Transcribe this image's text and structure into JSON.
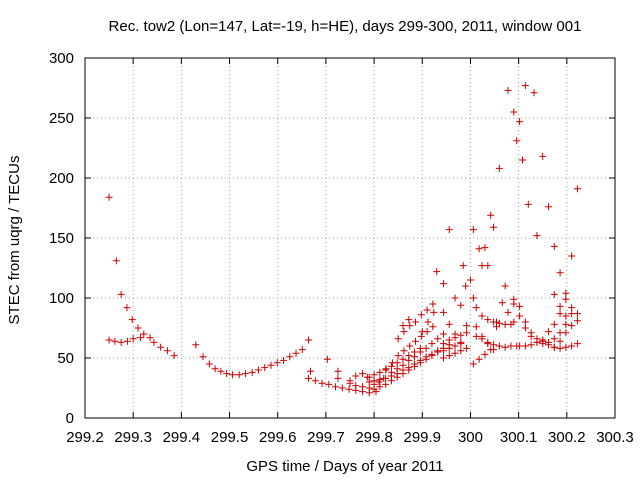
{
  "chart_data": {
    "type": "scatter",
    "title": "Rec. tow2 (Lon=147, Lat=-19, h=HE), days 299-300, 2011, window 001",
    "xlabel": "GPS time / Days of year 2011",
    "ylabel": "STEC from uqrg / TECUs",
    "xlim": [
      299.2,
      300.3
    ],
    "ylim": [
      0,
      300
    ],
    "xticks": [
      299.2,
      299.3,
      299.4,
      299.5,
      299.6,
      299.7,
      299.8,
      299.9,
      300,
      300.1,
      300.2,
      300.3
    ],
    "xtick_labels": [
      "299.2",
      "299.3",
      "299.4",
      "299.5",
      "299.6",
      "299.7",
      "299.8",
      "299.9",
      "300",
      "300.1",
      "300.2",
      "300.3"
    ],
    "yticks": [
      0,
      50,
      100,
      150,
      200,
      250,
      300
    ],
    "ytick_labels": [
      "0",
      "50",
      "100",
      "150",
      "200",
      "250",
      "300"
    ],
    "grid": true,
    "marker": "+",
    "color": "#cc0000",
    "series": [
      {
        "name": "STEC",
        "points": [
          [
            299.25,
            184
          ],
          [
            299.265,
            131
          ],
          [
            299.275,
            103
          ],
          [
            299.287,
            92
          ],
          [
            299.298,
            82
          ],
          [
            299.31,
            75
          ],
          [
            299.322,
            70
          ],
          [
            299.335,
            67
          ],
          [
            299.25,
            65
          ],
          [
            299.262,
            64
          ],
          [
            299.275,
            63
          ],
          [
            299.288,
            64
          ],
          [
            299.3,
            66
          ],
          [
            299.315,
            67
          ],
          [
            299.343,
            63
          ],
          [
            299.357,
            59
          ],
          [
            299.371,
            56
          ],
          [
            299.385,
            52
          ],
          [
            299.43,
            61
          ],
          [
            299.445,
            51
          ],
          [
            299.458,
            45
          ],
          [
            299.47,
            41
          ],
          [
            299.482,
            39
          ],
          [
            299.494,
            37
          ],
          [
            299.506,
            36
          ],
          [
            299.52,
            36
          ],
          [
            299.533,
            37
          ],
          [
            299.547,
            38
          ],
          [
            299.56,
            40
          ],
          [
            299.573,
            42
          ],
          [
            299.586,
            44
          ],
          [
            299.599,
            46
          ],
          [
            299.612,
            48
          ],
          [
            299.625,
            51
          ],
          [
            299.638,
            54
          ],
          [
            299.651,
            57
          ],
          [
            299.664,
            65
          ],
          [
            299.668,
            39
          ],
          [
            299.664,
            33
          ],
          [
            299.678,
            31
          ],
          [
            299.692,
            29
          ],
          [
            299.703,
            49
          ],
          [
            299.706,
            28
          ],
          [
            299.72,
            26
          ],
          [
            299.734,
            25
          ],
          [
            299.748,
            24
          ],
          [
            299.762,
            23
          ],
          [
            299.776,
            22
          ],
          [
            299.79,
            21
          ],
          [
            299.804,
            22
          ],
          [
            299.725,
            33
          ],
          [
            299.75,
            31
          ],
          [
            299.762,
            35
          ],
          [
            299.776,
            37
          ],
          [
            299.786,
            34
          ],
          [
            299.725,
            39
          ],
          [
            299.75,
            29
          ],
          [
            299.762,
            27
          ],
          [
            299.776,
            26
          ],
          [
            299.79,
            25
          ],
          [
            299.8,
            24
          ],
          [
            299.812,
            26
          ],
          [
            299.824,
            28
          ],
          [
            299.836,
            31
          ],
          [
            299.848,
            34
          ],
          [
            299.86,
            37
          ],
          [
            299.872,
            40
          ],
          [
            299.884,
            43
          ],
          [
            299.896,
            46
          ],
          [
            299.908,
            49
          ],
          [
            299.92,
            52
          ],
          [
            299.932,
            55
          ],
          [
            299.944,
            58
          ],
          [
            299.79,
            30
          ],
          [
            299.8,
            31
          ],
          [
            299.812,
            32
          ],
          [
            299.824,
            33
          ],
          [
            299.836,
            35
          ],
          [
            299.848,
            37
          ],
          [
            299.86,
            40
          ],
          [
            299.872,
            42
          ],
          [
            299.884,
            45
          ],
          [
            299.896,
            48
          ],
          [
            299.908,
            51
          ],
          [
            299.92,
            53
          ],
          [
            299.932,
            56
          ],
          [
            299.944,
            58
          ],
          [
            299.956,
            61
          ],
          [
            299.79,
            34
          ],
          [
            299.8,
            36
          ],
          [
            299.812,
            38
          ],
          [
            299.824,
            40
          ],
          [
            299.836,
            43
          ],
          [
            299.848,
            46
          ],
          [
            299.86,
            49
          ],
          [
            299.872,
            52
          ],
          [
            299.884,
            55
          ],
          [
            299.896,
            58
          ],
          [
            299.8,
            28
          ],
          [
            299.81,
            30
          ],
          [
            299.82,
            33
          ],
          [
            299.836,
            38
          ],
          [
            299.848,
            41
          ],
          [
            299.86,
            44
          ],
          [
            299.872,
            48
          ],
          [
            299.884,
            51
          ],
          [
            299.896,
            55
          ],
          [
            299.908,
            58
          ],
          [
            299.92,
            62
          ],
          [
            299.932,
            66
          ],
          [
            299.944,
            70
          ],
          [
            299.825,
            41
          ],
          [
            299.838,
            46
          ],
          [
            299.85,
            52
          ],
          [
            299.862,
            56
          ],
          [
            299.874,
            60
          ],
          [
            299.886,
            64
          ],
          [
            299.898,
            68
          ],
          [
            299.91,
            72
          ],
          [
            299.922,
            76
          ],
          [
            299.85,
            66
          ],
          [
            299.862,
            72
          ],
          [
            299.874,
            77
          ],
          [
            299.886,
            80
          ],
          [
            299.898,
            86
          ],
          [
            299.91,
            90
          ],
          [
            299.922,
            95
          ],
          [
            299.86,
            77
          ],
          [
            299.872,
            82
          ],
          [
            299.9,
            72
          ],
          [
            299.912,
            80
          ],
          [
            299.924,
            88
          ],
          [
            299.93,
            122
          ],
          [
            299.944,
            112
          ],
          [
            299.956,
            157
          ],
          [
            299.968,
            100
          ],
          [
            299.98,
            94
          ],
          [
            299.985,
            127
          ],
          [
            299.944,
            88
          ],
          [
            299.956,
            78
          ],
          [
            299.968,
            70
          ],
          [
            299.98,
            63
          ],
          [
            299.992,
            58
          ],
          [
            299.944,
            62
          ],
          [
            299.956,
            65
          ],
          [
            299.968,
            67
          ],
          [
            299.98,
            69
          ],
          [
            299.992,
            71
          ],
          [
            299.944,
            50
          ],
          [
            299.956,
            52
          ],
          [
            299.968,
            54
          ],
          [
            299.98,
            56
          ],
          [
            299.944,
            56
          ],
          [
            299.956,
            58
          ],
          [
            299.968,
            60
          ],
          [
            299.98,
            62
          ],
          [
            299.992,
            77
          ],
          [
            299.99,
            110
          ],
          [
            300,
            115
          ],
          [
            300.006,
            100
          ],
          [
            300.012,
            92
          ],
          [
            300.024,
            85
          ],
          [
            300.036,
            82
          ],
          [
            300.048,
            80
          ],
          [
            300.06,
            79
          ],
          [
            300.072,
            78
          ],
          [
            300.084,
            78
          ],
          [
            300.006,
            157
          ],
          [
            300.018,
            141
          ],
          [
            300.024,
            127
          ],
          [
            300.03,
            142
          ],
          [
            300.036,
            127
          ],
          [
            300.042,
            169
          ],
          [
            300.048,
            159
          ],
          [
            300.054,
            80
          ],
          [
            300.012,
            76
          ],
          [
            300.024,
            68
          ],
          [
            300.036,
            62
          ],
          [
            300.048,
            57
          ],
          [
            300.006,
            45
          ],
          [
            300.018,
            49
          ],
          [
            300.03,
            53
          ],
          [
            300.042,
            57
          ],
          [
            300.054,
            76
          ],
          [
            300.066,
            96
          ],
          [
            300.078,
            88
          ],
          [
            300.09,
            80
          ],
          [
            300.012,
            68
          ],
          [
            300.024,
            66
          ],
          [
            300.036,
            63
          ],
          [
            300.048,
            61
          ],
          [
            300.06,
            60
          ],
          [
            300.072,
            59
          ],
          [
            300.084,
            60
          ],
          [
            300.096,
            60
          ],
          [
            300.06,
            208
          ],
          [
            300.072,
            110
          ],
          [
            300.078,
            273
          ],
          [
            300.09,
            255
          ],
          [
            300.096,
            231
          ],
          [
            300.102,
            247
          ],
          [
            300.108,
            215
          ],
          [
            300.114,
            277
          ],
          [
            300.12,
            178
          ],
          [
            300.132,
            271
          ],
          [
            300.138,
            152
          ],
          [
            300.15,
            218
          ],
          [
            300.162,
            176
          ],
          [
            300.174,
            143
          ],
          [
            300.186,
            121
          ],
          [
            300.198,
            104
          ],
          [
            300.21,
            135
          ],
          [
            300.222,
            191
          ],
          [
            300.09,
            95
          ],
          [
            300.102,
            85
          ],
          [
            300.114,
            75
          ],
          [
            300.126,
            68
          ],
          [
            300.138,
            63
          ],
          [
            300.15,
            62
          ],
          [
            300.162,
            63
          ],
          [
            300.174,
            66
          ],
          [
            300.186,
            71
          ],
          [
            300.198,
            78
          ],
          [
            300.21,
            87
          ],
          [
            300.09,
            99
          ],
          [
            300.102,
            93
          ],
          [
            300.114,
            80
          ],
          [
            300.126,
            71
          ],
          [
            300.138,
            66
          ],
          [
            300.15,
            65
          ],
          [
            300.162,
            72
          ],
          [
            300.174,
            78
          ],
          [
            300.186,
            87
          ],
          [
            300.198,
            99
          ],
          [
            300.102,
            60
          ],
          [
            300.114,
            60
          ],
          [
            300.126,
            61
          ],
          [
            300.138,
            63
          ],
          [
            300.15,
            64
          ],
          [
            300.162,
            61
          ],
          [
            300.174,
            59
          ],
          [
            300.186,
            58
          ],
          [
            300.198,
            59
          ],
          [
            300.21,
            60
          ],
          [
            300.222,
            62
          ],
          [
            300.174,
            103
          ],
          [
            300.186,
            93
          ],
          [
            300.198,
            85
          ],
          [
            300.21,
            92
          ],
          [
            300.222,
            87
          ],
          [
            300.174,
            59
          ],
          [
            300.186,
            64
          ],
          [
            300.198,
            71
          ],
          [
            300.21,
            77
          ],
          [
            300.222,
            81
          ]
        ]
      }
    ]
  }
}
